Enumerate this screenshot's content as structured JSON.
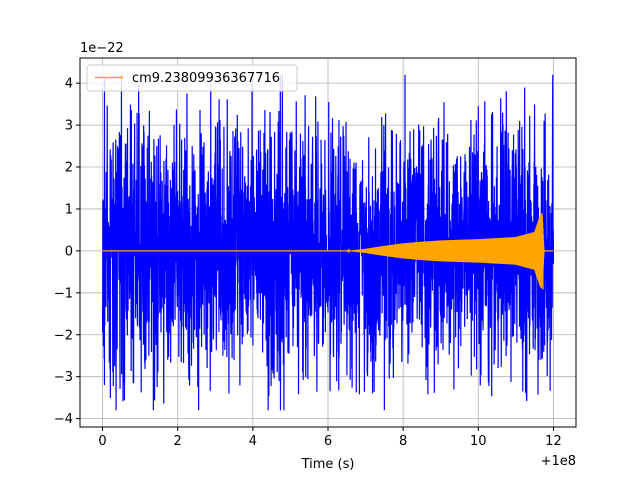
{
  "chart_data": {
    "type": "line",
    "xlabel": "Time (s)",
    "x_offset_label": "+1e8",
    "y_offset_label": "1e−22",
    "xlim": [
      -0.6,
      12.6
    ],
    "ylim": [
      -4.2,
      4.6
    ],
    "x_ticks": [
      0,
      2,
      4,
      6,
      8,
      10,
      12
    ],
    "x_tick_labels": [
      "0",
      "2",
      "4",
      "6",
      "8",
      "10",
      "12"
    ],
    "y_ticks": [
      -4,
      -3,
      -2,
      -1,
      0,
      1,
      2,
      3,
      4
    ],
    "y_tick_labels": [
      "−4",
      "−3",
      "−2",
      "−1",
      "0",
      "1",
      "2",
      "3",
      "4"
    ],
    "grid": true,
    "legend_position": "top-left",
    "series": [
      {
        "name": "",
        "color": "#0000ff",
        "kind": "noise",
        "x_range": [
          0,
          12
        ],
        "typical_amplitude": 2.0,
        "peak_max": 4.2,
        "peak_min": -3.8
      },
      {
        "name": "cm9.23809936367716",
        "color": "#ffa500",
        "kind": "chirp",
        "x_range": [
          0,
          12
        ],
        "envelope": [
          [
            0,
            0.0
          ],
          [
            6.5,
            0.0
          ],
          [
            7.0,
            0.05
          ],
          [
            7.5,
            0.12
          ],
          [
            8.0,
            0.18
          ],
          [
            8.5,
            0.22
          ],
          [
            9.0,
            0.25
          ],
          [
            10.0,
            0.28
          ],
          [
            11.0,
            0.33
          ],
          [
            11.5,
            0.45
          ],
          [
            11.65,
            0.85
          ],
          [
            11.7,
            0.9
          ],
          [
            11.75,
            0.0
          ],
          [
            12.0,
            0.0
          ]
        ]
      }
    ]
  }
}
